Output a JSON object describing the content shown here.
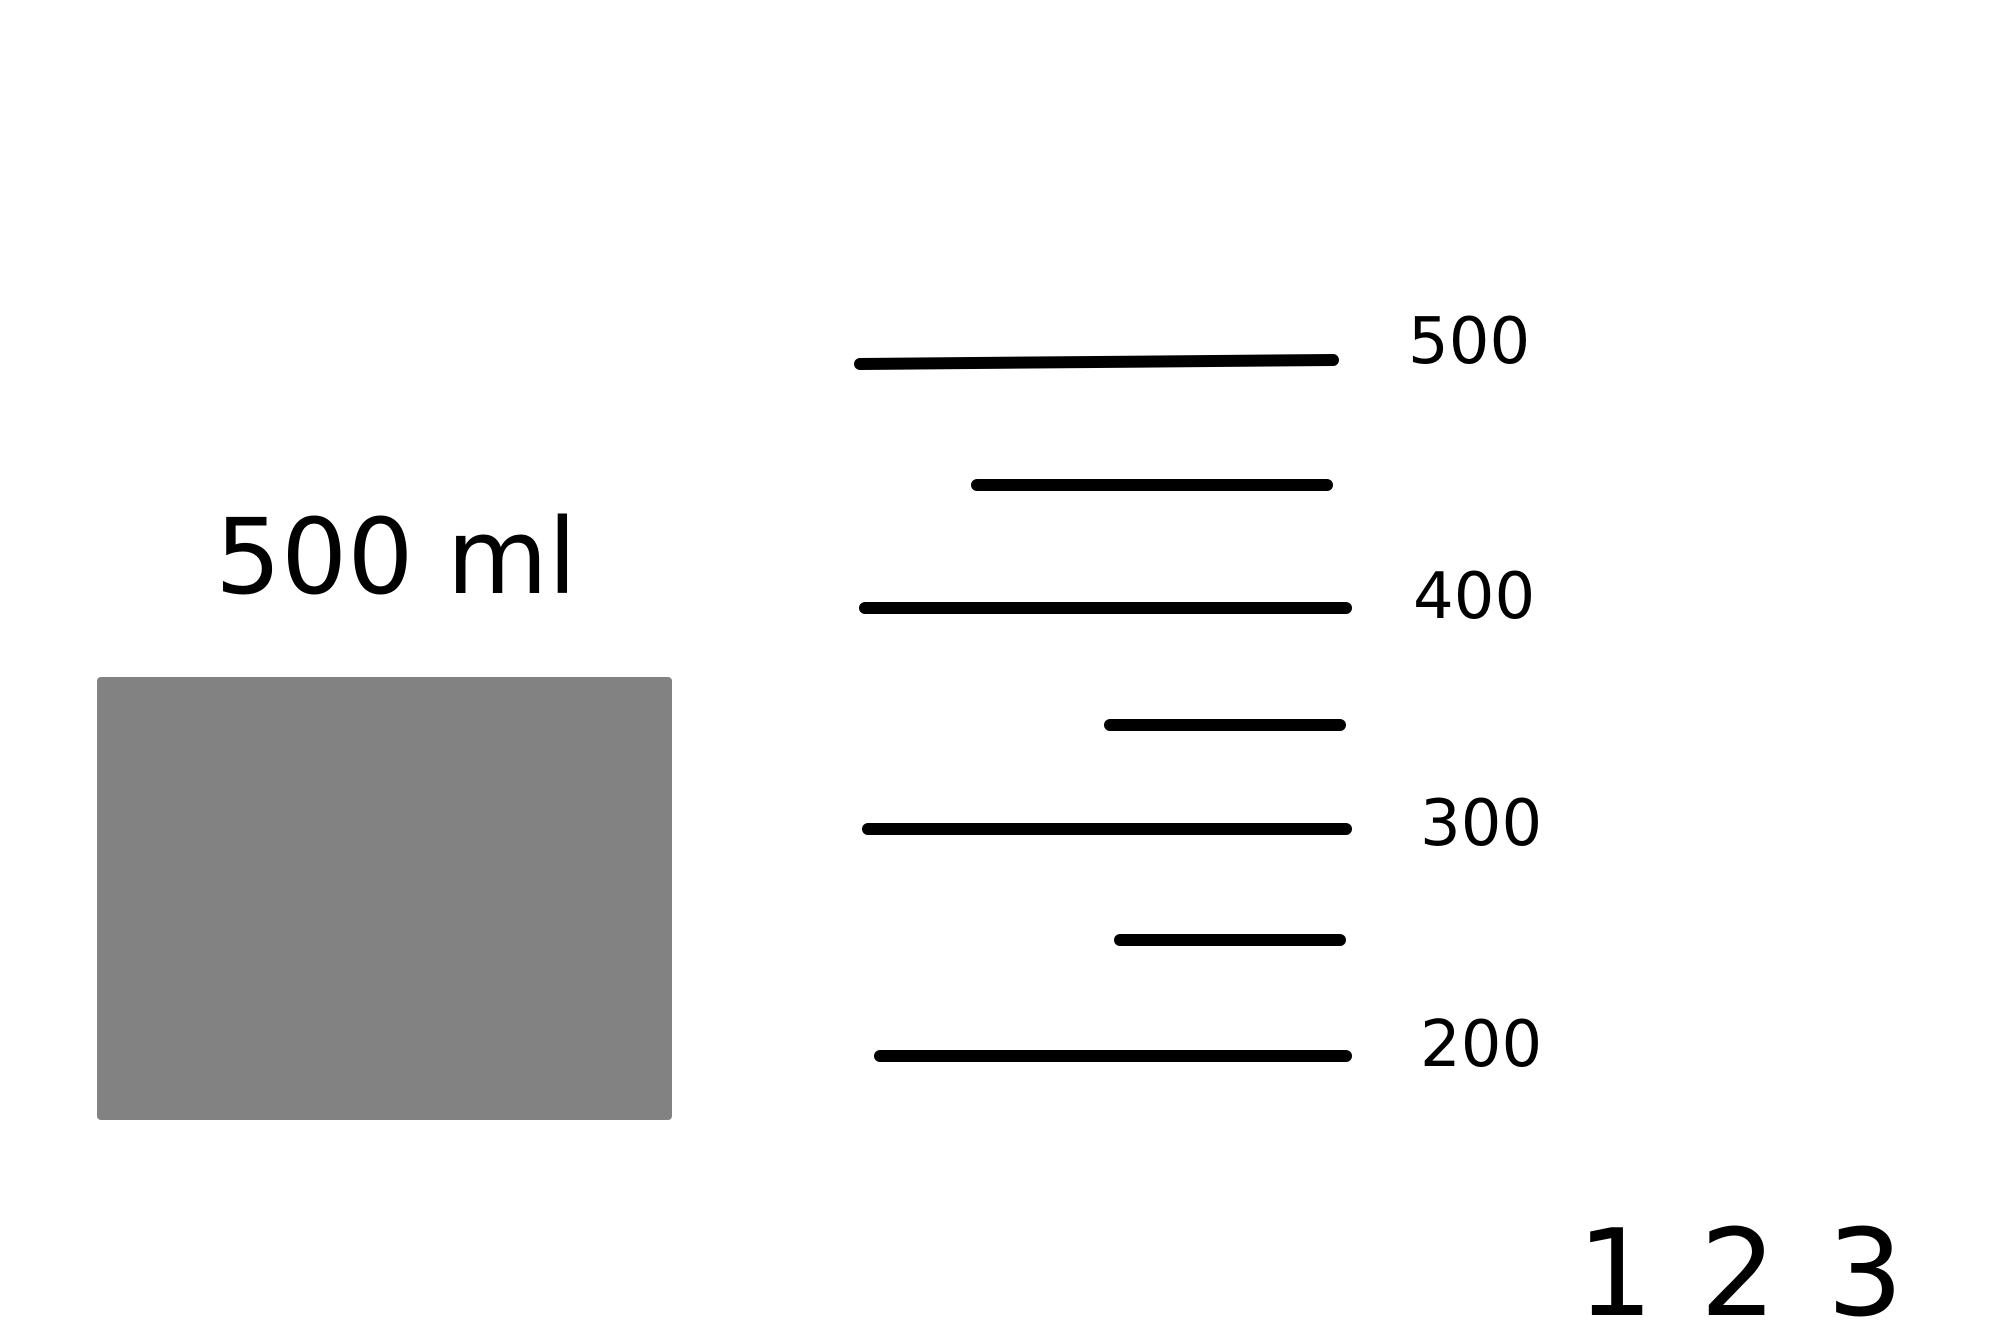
{
  "volume_label": "500 ml",
  "container_color": "#828282",
  "ink_color": "#000000",
  "scale": {
    "major_ticks": [
      {
        "value": 500,
        "label": "500"
      },
      {
        "value": 400,
        "label": "400"
      },
      {
        "value": 300,
        "label": "300"
      },
      {
        "value": 200,
        "label": "200"
      }
    ],
    "minor_tick_values": [
      450,
      350,
      250
    ]
  },
  "options": [
    "1",
    "2",
    "3"
  ]
}
